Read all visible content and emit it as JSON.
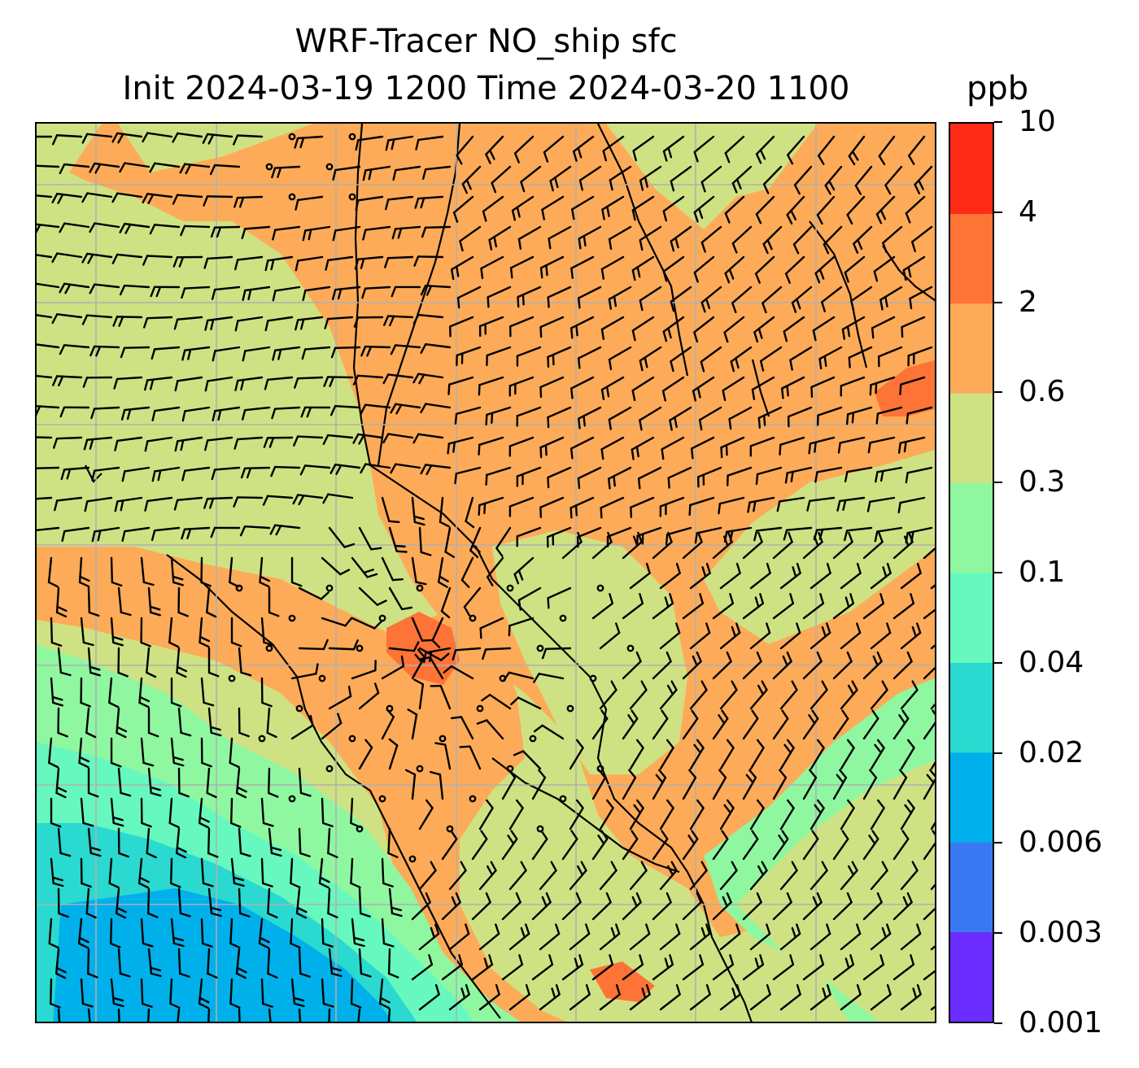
{
  "header": {
    "title_line1": "WRF-Tracer NO_ship sfc",
    "title_line2": "Init 2024-03-19 1200 Time 2024-03-20 1100",
    "units": "ppb"
  },
  "colorbar": {
    "levels": [
      "0.001",
      "0.003",
      "0.006",
      "0.02",
      "0.04",
      "0.1",
      "0.3",
      "0.6",
      "2",
      "4",
      "10"
    ],
    "colors": [
      "#6a2cff",
      "#3a78f2",
      "#00b0ea",
      "#2ad9d0",
      "#66f8be",
      "#8ff7a0",
      "#cfe283",
      "#fdab58",
      "#fe7336",
      "#ff2a16"
    ]
  },
  "map": {
    "background_level_color": "#cfe283",
    "gridline_color": "#b0b0b0",
    "coastline_color": "#000000",
    "wind_barb_color": "#000000"
  }
}
